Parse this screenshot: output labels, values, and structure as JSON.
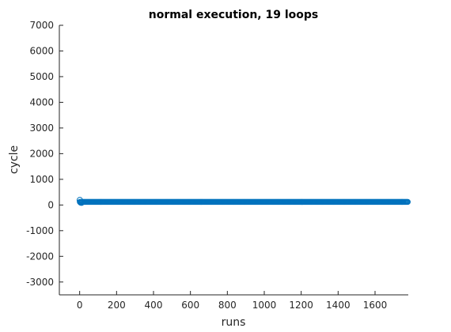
{
  "chart_data": {
    "type": "scatter",
    "title": "normal execution, 19 loops",
    "xlabel": "runs",
    "ylabel": "cycle",
    "xlim": [
      -110,
      1780
    ],
    "ylim": [
      -3500,
      7000
    ],
    "xticks": [
      0,
      200,
      400,
      600,
      800,
      1000,
      1200,
      1400,
      1600
    ],
    "yticks": [
      -3000,
      -2000,
      -1000,
      0,
      1000,
      2000,
      3000,
      4000,
      5000,
      6000,
      7000
    ],
    "grid": false,
    "marker": "circle-open",
    "marker_color": "#0072BD",
    "series": [
      {
        "x_range": [
          1,
          1780
        ],
        "baseline_value": 120,
        "outliers": [
          {
            "x": 1,
            "y": 190
          },
          {
            "x": 5,
            "y": 100
          },
          {
            "x": 10,
            "y": 90
          }
        ]
      }
    ]
  }
}
